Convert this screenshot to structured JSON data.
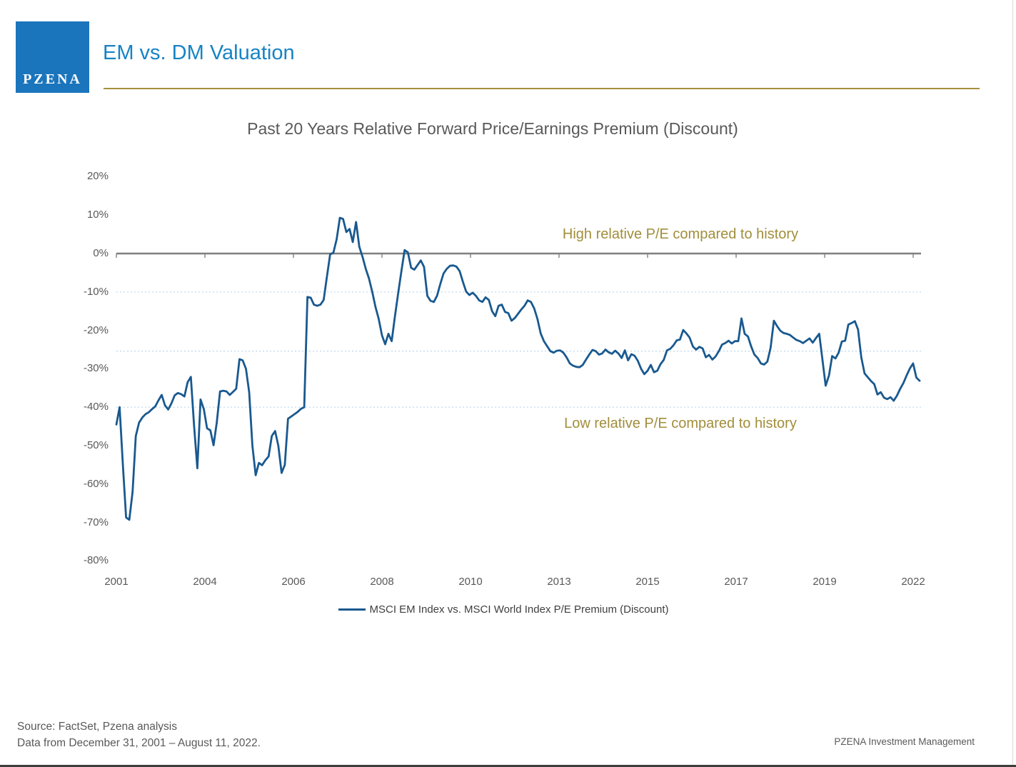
{
  "header": {
    "logo_text": "PZENA",
    "title": "EM vs. DM Valuation"
  },
  "chart_data": {
    "type": "line",
    "title": "Past 20 Years Relative Forward Price/Earnings Premium (Discount)",
    "x_tick_labels": [
      "2001",
      "2004",
      "2006",
      "2008",
      "2010",
      "2013",
      "2015",
      "2017",
      "2019",
      "2022"
    ],
    "y_tick_labels": [
      "20%",
      "10%",
      "0%",
      "-10%",
      "-20%",
      "-30%",
      "-40%",
      "-50%",
      "-60%",
      "-70%",
      "-80%"
    ],
    "y_ticks": [
      20,
      10,
      0,
      -10,
      -20,
      -30,
      -40,
      -50,
      -60,
      -70,
      -80
    ],
    "ylim": [
      -80,
      20
    ],
    "unit": "%",
    "zero_line": 0,
    "dashed_reference_lines": [
      -10,
      -25.4,
      -40
    ],
    "grid": "three dashed light-blue horizontal reference lines; solid gray line at 0%",
    "legend": {
      "label": "MSCI EM Index vs. MSCI World Index P/E Premium (Discount)",
      "position": "bottom"
    },
    "annotations": [
      {
        "text": "High relative P/E compared to history",
        "region": "above 0% line"
      },
      {
        "text": "Low relative P/E compared to history",
        "region": "below -40% line"
      }
    ],
    "series": [
      {
        "name": "MSCI EM Index vs. MSCI World Index P/E Premium (Discount)",
        "frequency": "monthly",
        "start": "December 2001",
        "end": "August 2022",
        "values": [
          -44.5,
          -40.0,
          -55.0,
          -68.7,
          -69.3,
          -62.0,
          -47.5,
          -44.0,
          -42.7,
          -41.8,
          -41.3,
          -40.5,
          -39.8,
          -38.2,
          -36.8,
          -39.5,
          -40.6,
          -39.0,
          -36.9,
          -36.3,
          -36.6,
          -37.2,
          -33.5,
          -32.1,
          -45.0,
          -55.9,
          -38.0,
          -40.5,
          -45.5,
          -46.0,
          -49.9,
          -44.0,
          -35.9,
          -35.7,
          -35.9,
          -36.8,
          -36.0,
          -35.2,
          -27.5,
          -27.8,
          -30.0,
          -36.1,
          -50.0,
          -57.7,
          -54.5,
          -55.1,
          -53.8,
          -52.8,
          -47.5,
          -46.2,
          -50.0,
          -57.1,
          -55.0,
          -43.0,
          -42.4,
          -41.8,
          -41.2,
          -40.4,
          -40.0,
          -11.3,
          -11.5,
          -13.3,
          -13.6,
          -13.3,
          -12.1,
          -6.0,
          -0.2,
          0.2,
          3.7,
          9.3,
          9.0,
          5.6,
          6.4,
          3.0,
          8.2,
          1.8,
          -0.9,
          -4.0,
          -6.5,
          -10.0,
          -13.9,
          -17.0,
          -21.3,
          -23.6,
          -20.9,
          -22.8,
          -16.4,
          -10.3,
          -4.6,
          0.9,
          0.3,
          -3.7,
          -4.2,
          -3.0,
          -1.8,
          -3.5,
          -11.0,
          -12.3,
          -12.6,
          -11.0,
          -8.0,
          -5.2,
          -4.0,
          -3.2,
          -3.1,
          -3.4,
          -4.6,
          -7.4,
          -9.9,
          -10.8,
          -10.2,
          -11.0,
          -12.2,
          -12.6,
          -11.4,
          -12.1,
          -15.0,
          -16.3,
          -13.6,
          -13.3,
          -15.2,
          -15.5,
          -17.5,
          -16.8,
          -15.7,
          -14.6,
          -13.6,
          -12.2,
          -12.6,
          -14.3,
          -17.0,
          -20.8,
          -22.8,
          -24.1,
          -25.4,
          -25.8,
          -25.3,
          -25.2,
          -25.8,
          -27.0,
          -28.6,
          -29.2,
          -29.5,
          -29.6,
          -29.0,
          -27.6,
          -26.3,
          -25.1,
          -25.4,
          -26.3,
          -26.0,
          -25.0,
          -25.7,
          -26.1,
          -25.3,
          -26.0,
          -27.2,
          -25.2,
          -27.8,
          -26.2,
          -26.6,
          -27.9,
          -30.0,
          -31.4,
          -30.5,
          -29.0,
          -30.9,
          -30.5,
          -28.8,
          -27.7,
          -25.2,
          -24.8,
          -23.9,
          -22.6,
          -22.4,
          -19.9,
          -20.8,
          -21.9,
          -24.2,
          -25.0,
          -24.3,
          -24.7,
          -27.0,
          -26.4,
          -27.6,
          -26.8,
          -25.4,
          -23.7,
          -23.3,
          -22.7,
          -23.4,
          -22.8,
          -22.8,
          -16.9,
          -20.9,
          -21.6,
          -24.2,
          -26.3,
          -27.2,
          -28.6,
          -28.9,
          -28.1,
          -24.5,
          -17.5,
          -18.9,
          -20.1,
          -20.7,
          -20.9,
          -21.2,
          -21.9,
          -22.5,
          -22.8,
          -23.3,
          -22.7,
          -22.1,
          -23.2,
          -22.0,
          -20.9,
          -27.6,
          -34.4,
          -31.8,
          -26.7,
          -27.3,
          -25.8,
          -22.9,
          -22.7,
          -18.5,
          -18.1,
          -17.6,
          -19.8,
          -27.0,
          -31.2,
          -32.2,
          -33.2,
          -34.0,
          -36.7,
          -36.1,
          -37.5,
          -37.9,
          -37.4,
          -38.3,
          -37.0,
          -35.2,
          -33.7,
          -31.7,
          -29.9,
          -28.6,
          -32.3,
          -33.1
        ]
      }
    ]
  },
  "colors": {
    "header_blue": "#1783C5",
    "logo_blue": "#1B75BC",
    "gold": "#A18E3B",
    "line_blue": "#19598F",
    "grid_dash_blue": "#BDD7EE",
    "zero_line_gray": "#7F7F7F",
    "axis_text_gray": "#595959"
  },
  "footer": {
    "source_line1": "Source: FactSet, Pzena analysis",
    "source_line2": "Data from December 31, 2001 – August 11, 2022.",
    "company": "PZENA Investment Management"
  }
}
